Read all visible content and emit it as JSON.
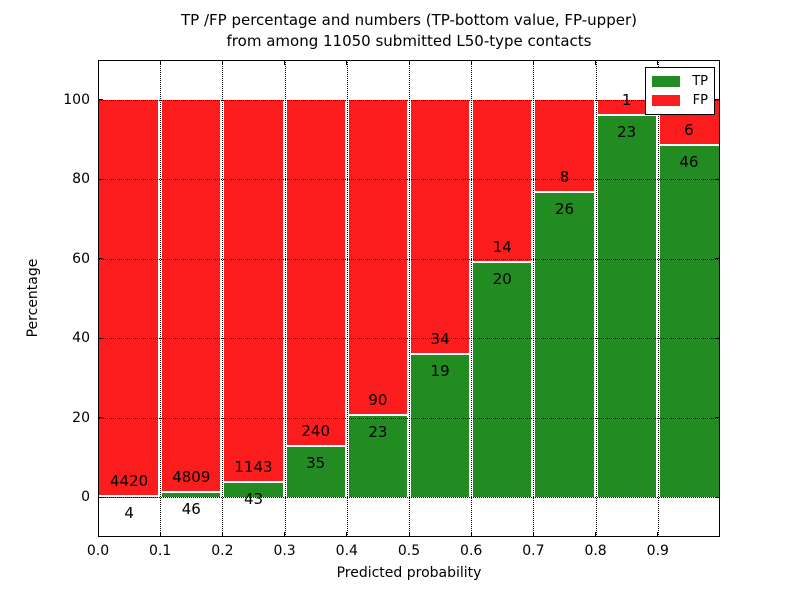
{
  "figure": {
    "title_line1": "TP /FP percentage and numbers (TP-bottom value, FP-upper)",
    "title_line2": "from among 11050 submitted L50-type contacts",
    "background_color": "#ffffff"
  },
  "chart_data": {
    "type": "bar",
    "stacked": true,
    "normalized_to_percent": true,
    "title": "TP /FP percentage and numbers (TP-bottom value, FP-upper) from among 11050 submitted L50-type contacts",
    "total_contacts": 11050,
    "xlabel": "Predicted probability",
    "ylabel": "Percentage",
    "x_tick_labels": [
      "0.0",
      "0.1",
      "0.2",
      "0.3",
      "0.4",
      "0.5",
      "0.6",
      "0.7",
      "0.8",
      "0.9"
    ],
    "y_ticks": [
      0,
      20,
      40,
      60,
      80,
      100
    ],
    "xlim": [
      0.0,
      1.0
    ],
    "ylim": [
      -10,
      110
    ],
    "bin_width": 0.1,
    "grid": "dotted",
    "annotation_note": "TP count shown below segment boundary, FP count above",
    "series": [
      {
        "name": "TP",
        "color": "#228b22",
        "values": [
          4,
          46,
          43,
          35,
          23,
          19,
          20,
          26,
          23,
          46
        ]
      },
      {
        "name": "FP",
        "color": "#fb1d1d",
        "values": [
          4420,
          4809,
          1143,
          240,
          90,
          34,
          14,
          8,
          1,
          6
        ]
      }
    ],
    "tp_percent_by_bin": [
      0.09,
      0.95,
      3.63,
      12.73,
      20.35,
      35.85,
      58.82,
      76.47,
      95.83,
      88.46
    ],
    "legend": {
      "position": "upper right",
      "entries": [
        "TP",
        "FP"
      ]
    },
    "axis_color": "#000000",
    "bar_edge_color": "#ffffff"
  }
}
